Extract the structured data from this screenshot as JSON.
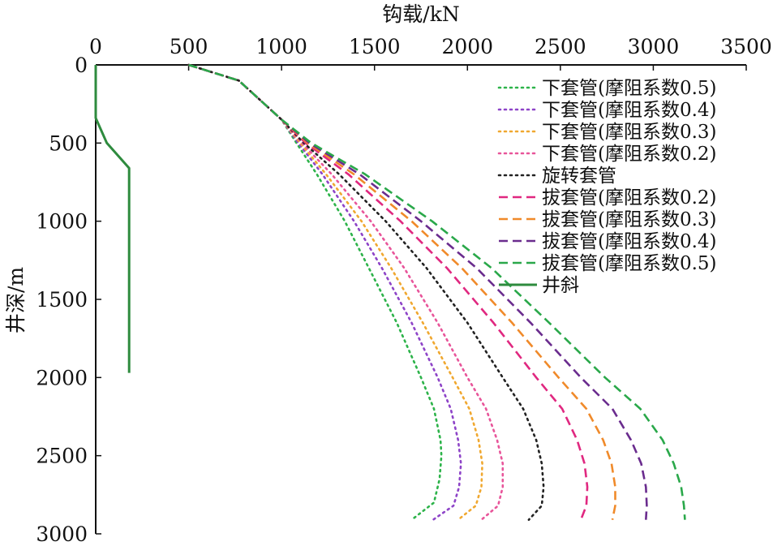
{
  "chart_data": {
    "type": "line",
    "xlabel": "钩载/kN",
    "ylabel": "井深/m",
    "xlim": [
      0,
      3500
    ],
    "ylim": [
      3000,
      0
    ],
    "x_axis_position": "top",
    "y_inverted": true,
    "grid": false,
    "legend_position": "top-right",
    "x_ticks": [
      "0",
      "500",
      "1000",
      "1500",
      "2000",
      "2500",
      "3000",
      "3500"
    ],
    "y_ticks": [
      "0",
      "500",
      "1000",
      "1500",
      "2000",
      "2500",
      "3000"
    ],
    "series": [
      {
        "name": "下套管(摩阻系数0.5)",
        "color": "#2db34a",
        "style": "dotted",
        "points": [
          [
            500,
            0
          ],
          [
            770,
            100
          ],
          [
            1000,
            350
          ],
          [
            1080,
            500
          ],
          [
            1190,
            700
          ],
          [
            1340,
            1000
          ],
          [
            1470,
            1300
          ],
          [
            1620,
            1650
          ],
          [
            1750,
            2000
          ],
          [
            1820,
            2200
          ],
          [
            1855,
            2400
          ],
          [
            1860,
            2500
          ],
          [
            1850,
            2650
          ],
          [
            1820,
            2800
          ],
          [
            1700,
            2910
          ]
        ]
      },
      {
        "name": "下套管(摩阻系数0.4)",
        "color": "#8e44c8",
        "style": "dotted",
        "points": [
          [
            500,
            0
          ],
          [
            770,
            100
          ],
          [
            1000,
            350
          ],
          [
            1090,
            500
          ],
          [
            1220,
            700
          ],
          [
            1390,
            1000
          ],
          [
            1540,
            1300
          ],
          [
            1700,
            1650
          ],
          [
            1840,
            2000
          ],
          [
            1910,
            2200
          ],
          [
            1950,
            2400
          ],
          [
            1965,
            2550
          ],
          [
            1955,
            2700
          ],
          [
            1925,
            2820
          ],
          [
            1815,
            2910
          ]
        ]
      },
      {
        "name": "下套管(摩阻系数0.3)",
        "color": "#f0a830",
        "style": "dotted",
        "points": [
          [
            500,
            0
          ],
          [
            770,
            100
          ],
          [
            1000,
            350
          ],
          [
            1100,
            500
          ],
          [
            1240,
            700
          ],
          [
            1430,
            1000
          ],
          [
            1590,
            1300
          ],
          [
            1760,
            1650
          ],
          [
            1920,
            2000
          ],
          [
            2010,
            2200
          ],
          [
            2060,
            2400
          ],
          [
            2080,
            2550
          ],
          [
            2075,
            2700
          ],
          [
            2045,
            2820
          ],
          [
            1950,
            2910
          ]
        ]
      },
      {
        "name": "下套管(摩阻系数0.2)",
        "color": "#e8559a",
        "style": "dotted",
        "points": [
          [
            500,
            0
          ],
          [
            770,
            100
          ],
          [
            1000,
            350
          ],
          [
            1110,
            500
          ],
          [
            1270,
            700
          ],
          [
            1480,
            1000
          ],
          [
            1660,
            1300
          ],
          [
            1840,
            1650
          ],
          [
            2000,
            2000
          ],
          [
            2100,
            2200
          ],
          [
            2160,
            2400
          ],
          [
            2190,
            2550
          ],
          [
            2190,
            2700
          ],
          [
            2165,
            2820
          ],
          [
            2075,
            2910
          ]
        ]
      },
      {
        "name": "旋转套管",
        "color": "#222222",
        "style": "dotted",
        "points": [
          [
            500,
            0
          ],
          [
            770,
            100
          ],
          [
            1000,
            350
          ],
          [
            1120,
            500
          ],
          [
            1310,
            700
          ],
          [
            1560,
            1000
          ],
          [
            1780,
            1300
          ],
          [
            2000,
            1650
          ],
          [
            2190,
            2000
          ],
          [
            2300,
            2200
          ],
          [
            2370,
            2400
          ],
          [
            2400,
            2550
          ],
          [
            2410,
            2700
          ],
          [
            2400,
            2820
          ],
          [
            2330,
            2910
          ]
        ]
      },
      {
        "name": "拔套管(摩阻系数0.2)",
        "color": "#e02880",
        "style": "dashed",
        "points": [
          [
            500,
            0
          ],
          [
            770,
            100
          ],
          [
            1000,
            350
          ],
          [
            1130,
            500
          ],
          [
            1360,
            700
          ],
          [
            1640,
            1000
          ],
          [
            1890,
            1300
          ],
          [
            2140,
            1650
          ],
          [
            2370,
            2000
          ],
          [
            2510,
            2200
          ],
          [
            2590,
            2400
          ],
          [
            2630,
            2550
          ],
          [
            2645,
            2700
          ],
          [
            2640,
            2820
          ],
          [
            2610,
            2910
          ]
        ]
      },
      {
        "name": "拔套管(摩阻系数0.3)",
        "color": "#f08a2a",
        "style": "dashed",
        "points": [
          [
            500,
            0
          ],
          [
            770,
            100
          ],
          [
            1000,
            350
          ],
          [
            1140,
            500
          ],
          [
            1390,
            700
          ],
          [
            1700,
            1000
          ],
          [
            1970,
            1300
          ],
          [
            2240,
            1650
          ],
          [
            2490,
            2000
          ],
          [
            2640,
            2200
          ],
          [
            2730,
            2400
          ],
          [
            2775,
            2550
          ],
          [
            2795,
            2700
          ],
          [
            2795,
            2820
          ],
          [
            2780,
            2910
          ]
        ]
      },
      {
        "name": "拔套管(摩阻系数0.4)",
        "color": "#6a2c8e",
        "style": "dashed",
        "points": [
          [
            500,
            0
          ],
          [
            770,
            100
          ],
          [
            1000,
            350
          ],
          [
            1150,
            500
          ],
          [
            1420,
            700
          ],
          [
            1750,
            1000
          ],
          [
            2050,
            1300
          ],
          [
            2340,
            1650
          ],
          [
            2610,
            2000
          ],
          [
            2780,
            2200
          ],
          [
            2880,
            2400
          ],
          [
            2935,
            2550
          ],
          [
            2960,
            2700
          ],
          [
            2965,
            2820
          ],
          [
            2960,
            2910
          ]
        ]
      },
      {
        "name": "拔套管(摩阻系数0.5)",
        "color": "#2aa84a",
        "style": "dashed",
        "points": [
          [
            500,
            0
          ],
          [
            770,
            100
          ],
          [
            1000,
            350
          ],
          [
            1160,
            500
          ],
          [
            1450,
            700
          ],
          [
            1810,
            1000
          ],
          [
            2130,
            1300
          ],
          [
            2440,
            1650
          ],
          [
            2740,
            2000
          ],
          [
            2930,
            2200
          ],
          [
            3050,
            2400
          ],
          [
            3110,
            2550
          ],
          [
            3150,
            2700
          ],
          [
            3165,
            2820
          ],
          [
            3170,
            2910
          ]
        ]
      },
      {
        "name": "井斜",
        "color": "#2e8b3e",
        "style": "solid",
        "points": [
          [
            0,
            0
          ],
          [
            0,
            340
          ],
          [
            60,
            500
          ],
          [
            180,
            660
          ],
          [
            180,
            1970
          ]
        ]
      }
    ]
  }
}
